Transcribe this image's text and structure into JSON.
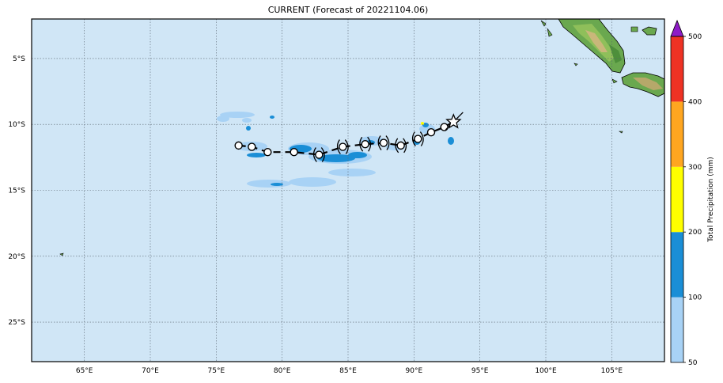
{
  "title": "CURRENT (Forecast of 20221104.06)",
  "map": {
    "lon_range": [
      61,
      109
    ],
    "lat_range": [
      -28,
      -2
    ],
    "lon_ticks": [
      "65°E",
      "70°E",
      "75°E",
      "80°E",
      "85°E",
      "90°E",
      "95°E",
      "100°E",
      "105°E"
    ],
    "lat_ticks": [
      "5°S",
      "10°S",
      "15°S",
      "20°S",
      "25°S"
    ],
    "ocean_color": "#d0e6f6",
    "gridlines": "dotted"
  },
  "colorbar": {
    "label": "Total Precipitation (mm)",
    "ticks": [
      "50",
      "100",
      "200",
      "300",
      "400",
      "500"
    ],
    "colors": [
      "#a8d2f5",
      "#1a8ed6",
      "#ffff00",
      "#ffa620",
      "#ee3224"
    ],
    "extend_color": "#8e1bc6"
  },
  "track": {
    "points": [
      {
        "lon": 76.7,
        "lat": -11.6
      },
      {
        "lon": 77.7,
        "lat": -11.7
      },
      {
        "lon": 78.9,
        "lat": -12.1
      },
      {
        "lon": 80.9,
        "lat": -12.1
      },
      {
        "lon": 82.8,
        "lat": -12.3
      },
      {
        "lon": 84.6,
        "lat": -11.7
      },
      {
        "lon": 86.3,
        "lat": -11.5
      },
      {
        "lon": 87.7,
        "lat": -11.4
      },
      {
        "lon": 89.0,
        "lat": -11.6
      },
      {
        "lon": 90.3,
        "lat": -11.1
      },
      {
        "lon": 91.3,
        "lat": -10.6
      },
      {
        "lon": 92.3,
        "lat": -10.2
      }
    ],
    "current_position": {
      "lon": 93.0,
      "lat": -9.8
    }
  }
}
